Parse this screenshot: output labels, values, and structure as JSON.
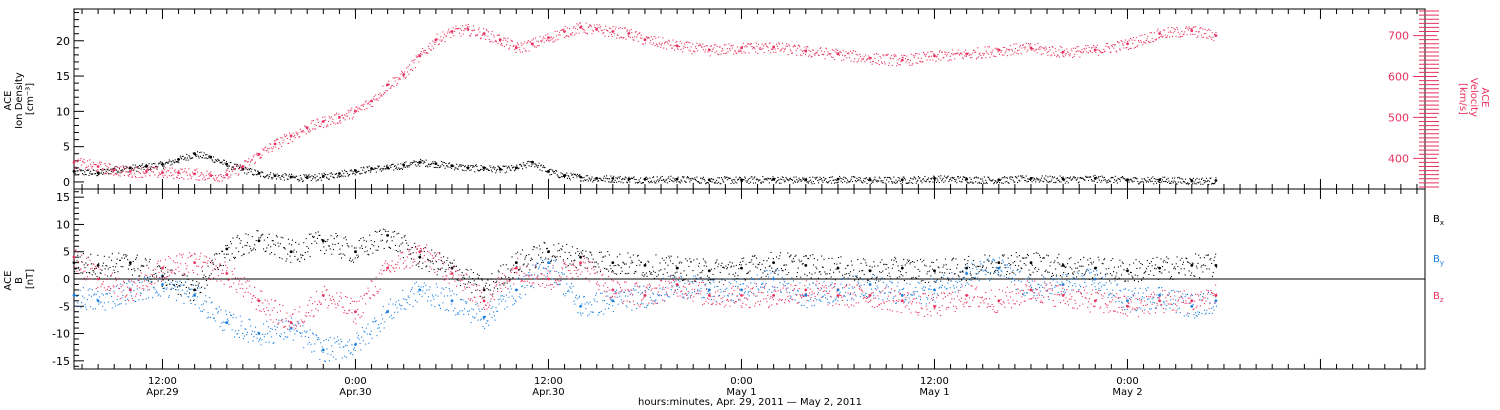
{
  "colors": {
    "black": "#000000",
    "pink": "#e8325f",
    "blue": "#1a7fe0"
  },
  "top_panel": {
    "left_label_lines": [
      "ACE",
      "Ion Density",
      "[cm⁻³]"
    ],
    "right_label_lines": [
      "ACE",
      "Velocity",
      "[km/s]"
    ]
  },
  "bottom_panel": {
    "left_label_lines": [
      "ACE",
      "B",
      "[nT]"
    ],
    "legend": [
      {
        "base": "B",
        "sub": "x",
        "color": "#000000"
      },
      {
        "base": "B",
        "sub": "y",
        "color": "#1a7fe0"
      },
      {
        "base": "B",
        "sub": "z",
        "color": "#e8325f"
      }
    ]
  },
  "x_axis": {
    "title": "hours:minutes, Apr. 29, 2011 — May  2, 2011",
    "ticks": [
      {
        "time": "12:00",
        "date": "Apr.29",
        "hours": 12
      },
      {
        "time": "0:00",
        "date": "Apr.30",
        "hours": 24
      },
      {
        "time": "12:00",
        "date": "Apr.30",
        "hours": 36
      },
      {
        "time": "0:00",
        "date": "May 1",
        "hours": 48
      },
      {
        "time": "12:00",
        "date": "May 1",
        "hours": 60
      },
      {
        "time": "0:00",
        "date": "May 2",
        "hours": 72
      }
    ]
  },
  "chart_data": [
    {
      "type": "scatter",
      "title": "",
      "xlabel": "hours:minutes, Apr. 29, 2011 — May  2, 2011",
      "ylabel": "ACE Ion Density [cm⁻³]",
      "y2label": "ACE Velocity [km/s]",
      "xlim": [
        6.5,
        90.5
      ],
      "ylim": [
        -1,
        24.5
      ],
      "y2lim": [
        325,
        765
      ],
      "yticks": [
        0,
        5,
        10,
        15,
        20
      ],
      "y2ticks": [
        400,
        500,
        600,
        700
      ],
      "grid": false,
      "series": [
        {
          "axis": "left",
          "color": "#000000",
          "x": [
            6.5,
            8,
            9,
            10,
            11,
            12,
            13,
            14,
            15,
            16,
            17,
            18,
            19,
            20,
            21,
            22,
            23,
            24,
            25,
            26,
            27,
            28,
            29,
            30,
            31,
            32,
            33,
            34,
            35,
            36,
            37,
            38,
            39,
            40,
            41,
            42,
            44,
            46,
            48,
            50,
            52,
            54,
            56,
            58,
            60,
            62,
            64,
            66,
            68,
            70,
            72,
            74,
            76,
            77.5
          ],
          "values": [
            1.5,
            1.3,
            1.8,
            2.0,
            2.2,
            2.5,
            3.2,
            4.0,
            3.5,
            2.5,
            1.8,
            1.2,
            0.9,
            0.7,
            0.6,
            0.8,
            1.2,
            1.6,
            1.9,
            2.0,
            2.4,
            2.8,
            2.6,
            2.3,
            2.0,
            2.0,
            1.8,
            2.0,
            2.8,
            1.5,
            0.9,
            0.7,
            0.5,
            0.5,
            0.4,
            0.4,
            0.4,
            0.3,
            0.3,
            0.4,
            0.3,
            0.4,
            0.3,
            0.3,
            0.5,
            0.4,
            0.3,
            0.5,
            0.4,
            0.5,
            0.3,
            0.3,
            0.2,
            0.2
          ]
        },
        {
          "axis": "right",
          "color": "#e8325f",
          "x": [
            6.5,
            8,
            9,
            10,
            11,
            12,
            13,
            14,
            15,
            16,
            17,
            18,
            19,
            20,
            21,
            22,
            23,
            24,
            25,
            26,
            27,
            28,
            29,
            30,
            31,
            32,
            33,
            34,
            35,
            36,
            37,
            38,
            39,
            40,
            41,
            42,
            44,
            46,
            48,
            50,
            52,
            54,
            56,
            58,
            60,
            62,
            64,
            66,
            68,
            70,
            72,
            74,
            76,
            77.5
          ],
          "values": [
            390,
            380,
            372,
            368,
            368,
            365,
            365,
            362,
            358,
            360,
            380,
            410,
            435,
            455,
            475,
            490,
            500,
            515,
            540,
            580,
            605,
            650,
            690,
            710,
            715,
            705,
            690,
            670,
            680,
            695,
            710,
            720,
            715,
            710,
            705,
            690,
            675,
            665,
            670,
            672,
            662,
            655,
            645,
            640,
            650,
            655,
            665,
            670,
            660,
            665,
            680,
            705,
            712,
            700
          ]
        }
      ]
    },
    {
      "type": "scatter",
      "title": "",
      "xlabel": "hours:minutes, Apr. 29, 2011 — May  2, 2011",
      "ylabel": "ACE B [nT]",
      "xlim": [
        6.5,
        90.5
      ],
      "ylim": [
        -16.5,
        16.5
      ],
      "yticks": [
        -15,
        -10,
        -5,
        0,
        5,
        10,
        15
      ],
      "grid": false,
      "series": [
        {
          "name": "Bx",
          "color": "#000000",
          "x": [
            6.5,
            8,
            10,
            12,
            14,
            16,
            18,
            20,
            22,
            24,
            26,
            28,
            30,
            32,
            34,
            36,
            38,
            40,
            42,
            44,
            46,
            48,
            50,
            52,
            54,
            56,
            58,
            60,
            62,
            64,
            66,
            68,
            70,
            72,
            74,
            76,
            77.5
          ],
          "values": [
            3,
            2.5,
            3,
            0.5,
            -2,
            5.5,
            7,
            5,
            7,
            5,
            8,
            4,
            2,
            -2,
            3,
            5,
            4,
            3,
            2.5,
            2,
            1.5,
            2,
            3,
            2.5,
            2,
            1.5,
            2,
            1.5,
            2,
            3,
            3,
            2.5,
            2,
            1.5,
            2,
            2.5,
            2.5
          ]
        },
        {
          "name": "By",
          "color": "#1a7fe0",
          "x": [
            6.5,
            8,
            10,
            12,
            14,
            16,
            18,
            20,
            22,
            24,
            26,
            28,
            30,
            32,
            34,
            36,
            38,
            40,
            42,
            44,
            46,
            48,
            50,
            52,
            54,
            56,
            58,
            60,
            62,
            64,
            66,
            68,
            70,
            72,
            74,
            76,
            77.5
          ],
          "values": [
            -3,
            -4,
            -2,
            -1,
            -3,
            -8,
            -10,
            -9,
            -13,
            -12,
            -6,
            -2,
            -4,
            -7,
            -2,
            3,
            -5,
            -4,
            -3,
            -1,
            -2,
            -2,
            0,
            -3,
            -2,
            -1,
            -3,
            -2,
            1,
            2,
            -2,
            -1,
            0,
            -4,
            -3,
            -5,
            -4
          ]
        },
        {
          "name": "Bz",
          "color": "#e8325f",
          "x": [
            6.5,
            8,
            10,
            12,
            14,
            16,
            18,
            20,
            22,
            24,
            26,
            28,
            30,
            32,
            34,
            36,
            38,
            40,
            42,
            44,
            46,
            48,
            50,
            52,
            54,
            56,
            58,
            60,
            62,
            64,
            66,
            68,
            70,
            72,
            74,
            76,
            77.5
          ],
          "values": [
            4,
            0,
            -2,
            2,
            3,
            1,
            -4,
            -8,
            -3,
            -6,
            2,
            5,
            1,
            -4,
            2,
            0,
            3,
            -2,
            -3,
            -1,
            -3,
            -3,
            -3,
            -2,
            -3,
            -3,
            -4,
            -5,
            -3,
            -4,
            -2,
            -3,
            -4,
            -5,
            -4,
            -4,
            -3
          ]
        }
      ]
    }
  ]
}
